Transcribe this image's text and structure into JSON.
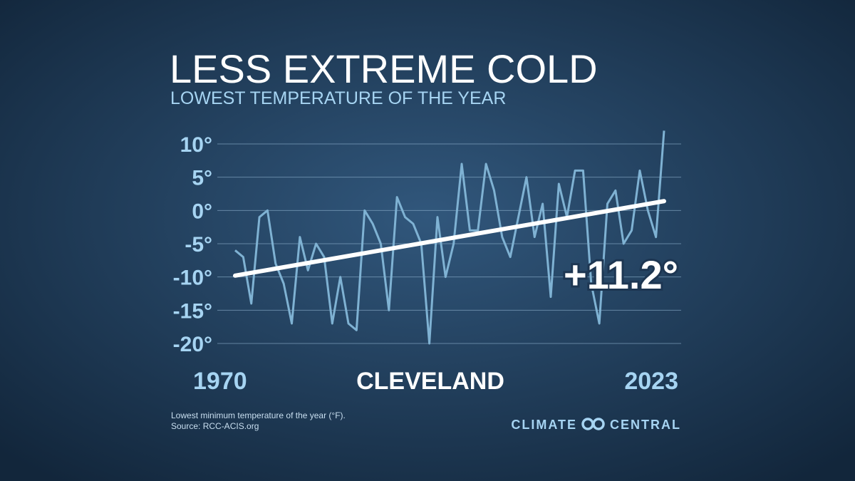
{
  "chart_data": {
    "type": "line",
    "title": "LESS EXTREME COLD",
    "subtitle": "LOWEST TEMPERATURE OF THE YEAR",
    "location": "CLEVELAND",
    "annotation": "+11.2°",
    "footnote": [
      "Lowest minimum temperature of the year (°F).",
      "Source: RCC-ACIS.org"
    ],
    "brand": [
      "CLIMATE",
      "CENTRAL"
    ],
    "x": [
      1970,
      1971,
      1972,
      1973,
      1974,
      1975,
      1976,
      1977,
      1978,
      1979,
      1980,
      1981,
      1982,
      1983,
      1984,
      1985,
      1986,
      1987,
      1988,
      1989,
      1990,
      1991,
      1992,
      1993,
      1994,
      1995,
      1996,
      1997,
      1998,
      1999,
      2000,
      2001,
      2002,
      2003,
      2004,
      2005,
      2006,
      2007,
      2008,
      2009,
      2010,
      2011,
      2012,
      2013,
      2014,
      2015,
      2016,
      2017,
      2018,
      2019,
      2020,
      2021,
      2022,
      2023
    ],
    "series": [
      {
        "color": "#7fb2d3",
        "values": [
          -6,
          -7,
          -14,
          -1,
          0,
          -8,
          -11,
          -17,
          -4,
          -9,
          -5,
          -7,
          -17,
          -10,
          -17,
          -18,
          0,
          -2,
          -5,
          -15,
          2,
          -1,
          -2,
          -5,
          -20,
          -1,
          -10,
          -5,
          7,
          -3,
          -3,
          7,
          3,
          -4,
          -7,
          -1,
          5,
          -4,
          1,
          -13,
          4,
          -1,
          6,
          6,
          -11,
          -17,
          1,
          3,
          -5,
          -3,
          6,
          0,
          -4,
          12
        ]
      }
    ],
    "trend": {
      "color": "#ffffff",
      "x": [
        1970,
        2023
      ],
      "values": [
        -9.8,
        1.4
      ]
    },
    "xlim": [
      1970,
      2023
    ],
    "xticks": [
      1970,
      2023
    ],
    "ylim": [
      -20,
      10
    ],
    "yticks": [
      {
        "value": 10,
        "label": "10°"
      },
      {
        "value": 5,
        "label": "5°"
      },
      {
        "value": 0,
        "label": "0°"
      },
      {
        "value": -5,
        "label": "-5°"
      },
      {
        "value": -10,
        "label": "-10°"
      },
      {
        "value": -15,
        "label": "-15°"
      },
      {
        "value": -20,
        "label": "-20°"
      }
    ],
    "grid": true
  }
}
